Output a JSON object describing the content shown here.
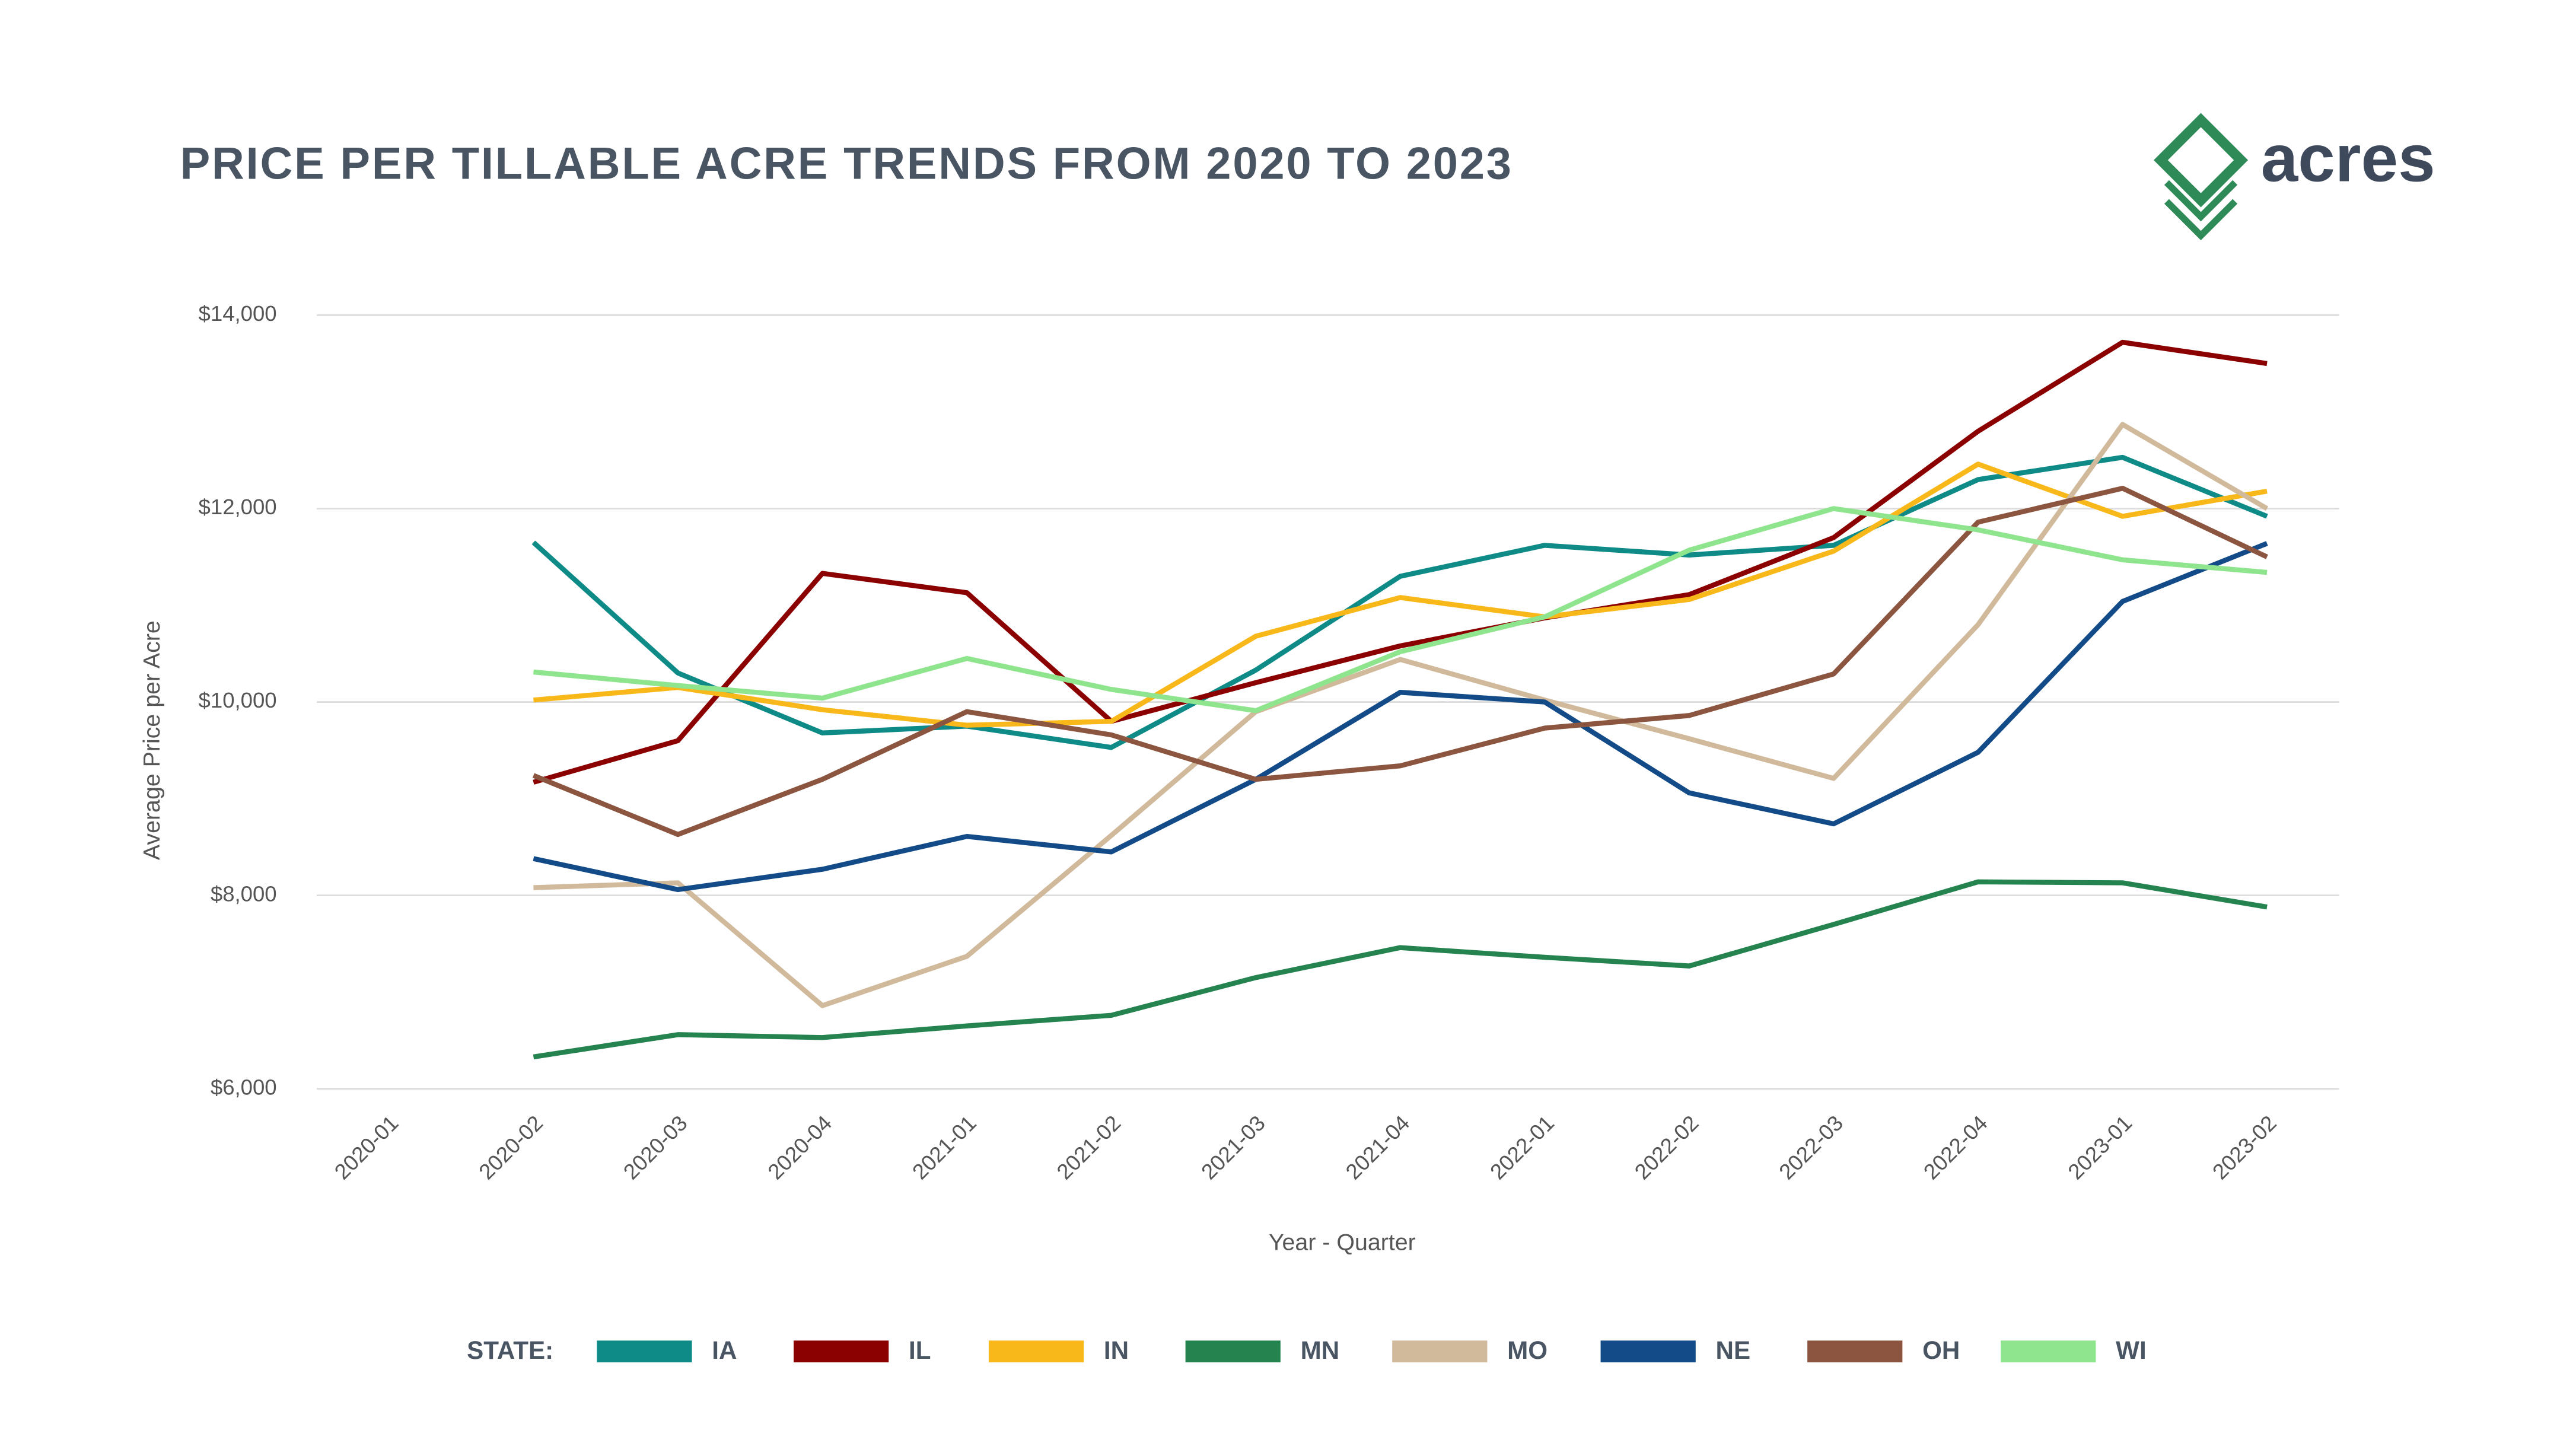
{
  "logo": "acres",
  "chart_data": {
    "type": "line",
    "title": "PRICE PER TILLABLE ACRE TRENDS FROM 2020 TO 2023",
    "x_label": "Year - Quarter",
    "y_label": "Average Price per Acre",
    "legend_title": "STATE:",
    "categories": [
      "2020-01",
      "2020-02",
      "2020-03",
      "2020-04",
      "2021-01",
      "2021-02",
      "2021-03",
      "2021-04",
      "2022-01",
      "2022-02",
      "2022-03",
      "2022-04",
      "2023-01",
      "2023-02"
    ],
    "ylim": [
      6000,
      14000
    ],
    "yticks": [
      {
        "value": 6000,
        "label": "$6,000"
      },
      {
        "value": 8000,
        "label": "$8,000"
      },
      {
        "value": 10000,
        "label": "$10,000"
      },
      {
        "value": 12000,
        "label": "$12,000"
      },
      {
        "value": 14000,
        "label": "$14,000"
      }
    ],
    "grid": true,
    "series": [
      {
        "name": "IA",
        "color": "#0e8a87",
        "values": [
          null,
          11650,
          10300,
          9680,
          9750,
          9530,
          10330,
          11300,
          11620,
          11520,
          11620,
          12300,
          12530,
          11920
        ]
      },
      {
        "name": "IL",
        "color": "#8b0000",
        "values": [
          null,
          9170,
          9600,
          11330,
          11130,
          9800,
          10200,
          10580,
          10870,
          11110,
          11700,
          12800,
          13720,
          13500
        ]
      },
      {
        "name": "IN",
        "color": "#f9b81a",
        "values": [
          null,
          10020,
          10150,
          9920,
          9760,
          9800,
          10680,
          11080,
          10880,
          11060,
          11560,
          12460,
          11920,
          12180
        ]
      },
      {
        "name": "MN",
        "color": "#24834f",
        "values": [
          null,
          6330,
          6560,
          6530,
          6650,
          6760,
          7150,
          7460,
          7360,
          7270,
          7700,
          8140,
          8130,
          7880
        ]
      },
      {
        "name": "MO",
        "color": "#d1b99b",
        "values": [
          null,
          8080,
          8130,
          6860,
          7370,
          8620,
          9900,
          10440,
          10020,
          9620,
          9210,
          10800,
          12870,
          12000
        ]
      },
      {
        "name": "NE",
        "color": "#134b88",
        "values": [
          null,
          8380,
          8060,
          8270,
          8610,
          8450,
          9200,
          10100,
          10000,
          9060,
          8740,
          9480,
          11040,
          11640
        ]
      },
      {
        "name": "OH",
        "color": "#8b5540",
        "values": [
          null,
          9240,
          8630,
          9200,
          9900,
          9660,
          9200,
          9340,
          9730,
          9860,
          10290,
          11860,
          12210,
          11500
        ]
      },
      {
        "name": "WI",
        "color": "#8fe58d",
        "values": [
          null,
          10310,
          10170,
          10040,
          10450,
          10130,
          9910,
          10520,
          10880,
          11570,
          12000,
          11780,
          11470,
          11340
        ]
      }
    ]
  }
}
